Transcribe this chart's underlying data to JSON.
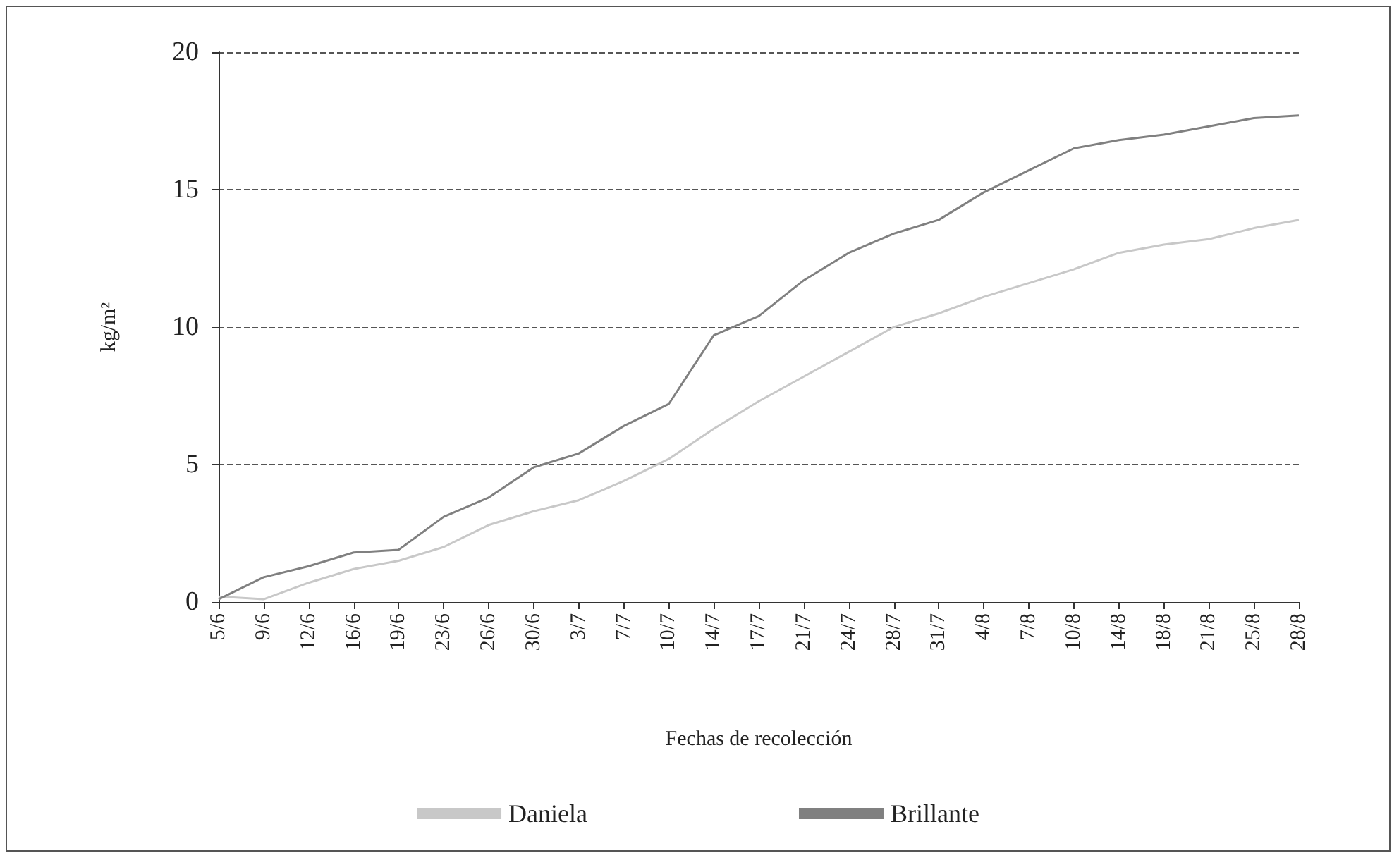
{
  "chart_data": {
    "type": "line",
    "xlabel": "Fechas de recolección",
    "ylabel": "kg/m²",
    "categories": [
      "5/6",
      "9/6",
      "12/6",
      "16/6",
      "19/6",
      "23/6",
      "26/6",
      "30/6",
      "3/7",
      "7/7",
      "10/7",
      "14/7",
      "17/7",
      "21/7",
      "24/7",
      "28/7",
      "31/7",
      "4/8",
      "7/8",
      "10/8",
      "14/8",
      "18/8",
      "21/8",
      "25/8",
      "28/8"
    ],
    "series": [
      {
        "name": "Daniela",
        "color": "#c8c8c8",
        "values": [
          0.2,
          0.1,
          0.7,
          1.2,
          1.5,
          2.0,
          2.8,
          3.3,
          3.7,
          4.4,
          5.2,
          6.3,
          7.3,
          8.2,
          9.1,
          10.0,
          10.5,
          11.1,
          11.6,
          12.1,
          12.7,
          13.0,
          13.2,
          13.6,
          13.9
        ]
      },
      {
        "name": "Brillante",
        "color": "#808080",
        "values": [
          0.1,
          0.9,
          1.3,
          1.8,
          1.9,
          3.1,
          3.8,
          4.9,
          5.4,
          6.4,
          7.2,
          9.7,
          10.4,
          11.7,
          12.7,
          13.4,
          13.9,
          14.9,
          15.7,
          16.5,
          16.8,
          17.0,
          17.3,
          17.6,
          17.7
        ]
      }
    ],
    "ylim": [
      0,
      20
    ],
    "yticks": [
      0,
      5,
      10,
      15,
      20
    ],
    "grid": "y",
    "legend": "bottom",
    "marker": "none",
    "line_style": "solid"
  }
}
